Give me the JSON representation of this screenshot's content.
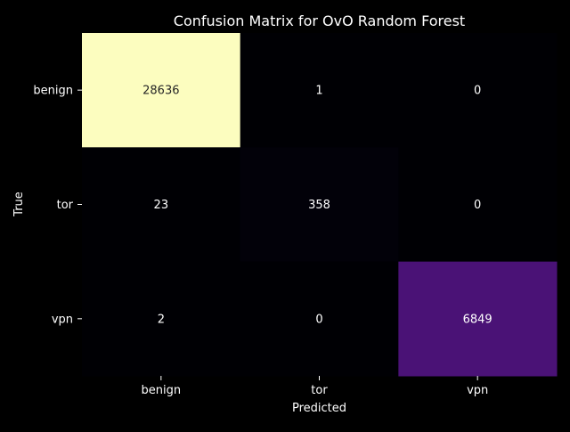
{
  "chart_data": {
    "type": "heatmap",
    "title": "Confusion Matrix for OvO Random Forest",
    "xlabel": "Predicted",
    "ylabel": "True",
    "x_categories": [
      "benign",
      "tor",
      "vpn"
    ],
    "y_categories": [
      "benign",
      "tor",
      "vpn"
    ],
    "values": [
      [
        28636,
        1,
        0
      ],
      [
        23,
        358,
        0
      ],
      [
        2,
        0,
        6849
      ]
    ],
    "colormap": "magma",
    "colorbar": false,
    "grid": false
  },
  "colors": {
    "background": "#000000",
    "text": "#ffffff",
    "annotation_dark_cell": "#262626"
  }
}
